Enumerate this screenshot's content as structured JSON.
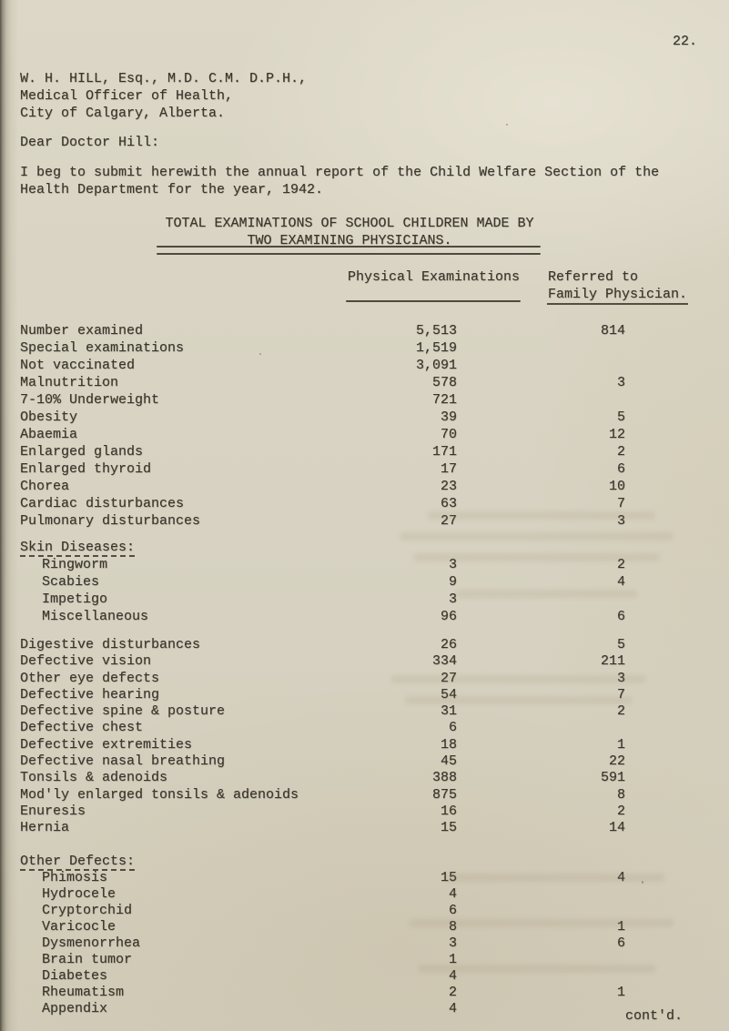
{
  "page": {
    "number": "22.",
    "continued": "cont'd."
  },
  "letter": {
    "recipient": [
      "W. H. HILL, Esq., M.D. C.M. D.P.H.,",
      "Medical Officer of Health,",
      "City of Calgary, Alberta."
    ],
    "salutation": "Dear Doctor Hill:",
    "body": [
      "I beg to submit herewith the annual report of the Child Welfare Section of the",
      "Health Department for the year, 1942."
    ]
  },
  "table": {
    "title_lines": [
      "TOTAL EXAMINATIONS OF SCHOOL CHILDREN MADE BY",
      "TWO EXAMINING PHYSICIANS."
    ],
    "column_headers": {
      "physical": "Physical Examinations",
      "referred_line1": "Referred to",
      "referred_line2": "Family Physician."
    },
    "sections": [
      {
        "heading": "",
        "rows": [
          {
            "label": "Number examined",
            "physical": "5,513",
            "referred": "814"
          },
          {
            "label": "Special examinations",
            "physical": "1,519",
            "referred": ""
          },
          {
            "label": "Not vaccinated",
            "physical": "3,091",
            "referred": ""
          },
          {
            "label": "Malnutrition",
            "physical": "578",
            "referred": "3"
          },
          {
            "label": "7-10% Underweight",
            "physical": "721",
            "referred": ""
          },
          {
            "label": "Obesity",
            "physical": "39",
            "referred": "5"
          },
          {
            "label": "Abaemia",
            "physical": "70",
            "referred": "12"
          },
          {
            "label": "Enlarged glands",
            "physical": "171",
            "referred": "2"
          },
          {
            "label": "Enlarged thyroid",
            "physical": "17",
            "referred": "6"
          },
          {
            "label": "Chorea",
            "physical": "23",
            "referred": "10"
          },
          {
            "label": "Cardiac disturbances",
            "physical": "63",
            "referred": "7"
          },
          {
            "label": "Pulmonary disturbances",
            "physical": "27",
            "referred": "3"
          }
        ]
      },
      {
        "heading": "Skin Diseases:",
        "rows": [
          {
            "label": "Ringworm",
            "physical": "3",
            "referred": "2"
          },
          {
            "label": "Scabies",
            "physical": "9",
            "referred": "4"
          },
          {
            "label": "Impetigo",
            "physical": "3",
            "referred": ""
          },
          {
            "label": "Miscellaneous",
            "physical": "96",
            "referred": "6"
          }
        ]
      },
      {
        "heading": "",
        "rows": [
          {
            "label": "Digestive disturbances",
            "physical": "26",
            "referred": "5"
          },
          {
            "label": "Defective vision",
            "physical": "334",
            "referred": "211"
          },
          {
            "label": "Other eye defects",
            "physical": "27",
            "referred": "3"
          },
          {
            "label": "Defective hearing",
            "physical": "54",
            "referred": "7"
          },
          {
            "label": "Defective spine & posture",
            "physical": "31",
            "referred": "2"
          },
          {
            "label": "Defective chest",
            "physical": "6",
            "referred": ""
          },
          {
            "label": "Defective extremities",
            "physical": "18",
            "referred": "1"
          },
          {
            "label": "Defective nasal breathing",
            "physical": "45",
            "referred": "22"
          },
          {
            "label": "Tonsils & adenoids",
            "physical": "388",
            "referred": "591"
          },
          {
            "label": "Mod'ly enlarged tonsils & adenoids",
            "physical": "875",
            "referred": "8"
          },
          {
            "label": "Enuresis",
            "physical": "16",
            "referred": "2"
          },
          {
            "label": "Hernia",
            "physical": "15",
            "referred": "14"
          }
        ]
      },
      {
        "heading": "Other Defects:",
        "rows": [
          {
            "label": "Phimosis",
            "physical": "15",
            "referred": "4"
          },
          {
            "label": "Hydrocele",
            "physical": "4",
            "referred": ""
          },
          {
            "label": "Cryptorchid",
            "physical": "6",
            "referred": ""
          },
          {
            "label": "Varicocle",
            "physical": "8",
            "referred": "1"
          },
          {
            "label": "Dysmenorrhea",
            "physical": "3",
            "referred": "6"
          },
          {
            "label": "Brain tumor",
            "physical": "1",
            "referred": ""
          },
          {
            "label": "Diabetes",
            "physical": "4",
            "referred": ""
          },
          {
            "label": "Rheumatism",
            "physical": "2",
            "referred": "1"
          },
          {
            "label": "Appendix",
            "physical": "4",
            "referred": ""
          }
        ]
      }
    ]
  },
  "colors": {
    "paper": "#d8d3c2",
    "ink": "#3a362c"
  }
}
